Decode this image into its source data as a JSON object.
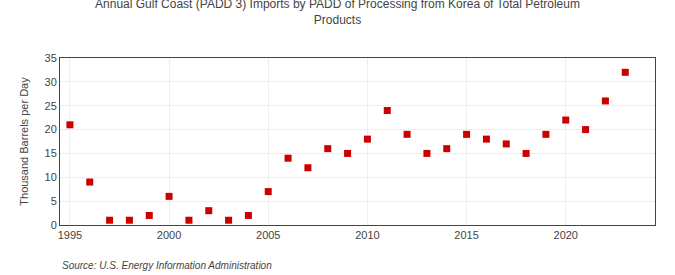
{
  "chart_data": {
    "type": "scatter",
    "title": "Annual Gulf Coast (PADD 3) Imports by PADD of Processing from Korea of Total Petroleum\nProducts",
    "ylabel": "Thousand Barrels per Day",
    "annotations": [
      "Source: U.S. Energy Information Administration"
    ],
    "x": [
      1995,
      1996,
      1997,
      1998,
      1999,
      2000,
      2001,
      2002,
      2003,
      2004,
      2005,
      2006,
      2007,
      2008,
      2009,
      2010,
      2011,
      2012,
      2013,
      2014,
      2015,
      2016,
      2017,
      2018,
      2019,
      2020,
      2021,
      2022,
      2023
    ],
    "values": [
      21,
      9,
      1,
      1,
      2,
      6,
      1,
      3,
      1,
      2,
      7,
      14,
      12,
      16,
      15,
      18,
      24,
      19,
      15,
      16,
      19,
      18,
      17,
      15,
      19,
      22,
      20,
      26,
      32
    ],
    "color": "#cc0000",
    "marker": "square",
    "xlim": [
      1994.5,
      2024.5
    ],
    "xticks": [
      1995,
      2000,
      2005,
      2010,
      2015,
      2020
    ],
    "ylim": [
      0,
      35
    ],
    "yticks": [
      0,
      5,
      10,
      15,
      20,
      25,
      30,
      35
    ],
    "grid": true
  }
}
